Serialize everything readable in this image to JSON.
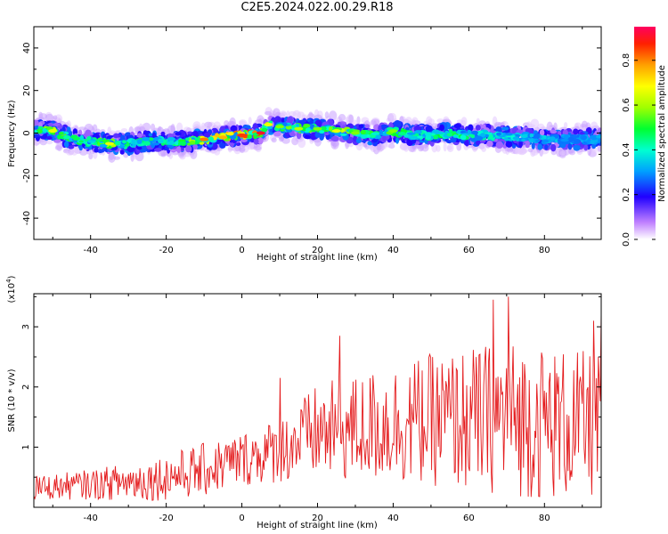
{
  "title": "C2E5.2024.022.00.29.R18",
  "chart_data": [
    {
      "type": "heatmap",
      "xlabel": "Height of straight line (km)",
      "ylabel": "Frequency (Hz)",
      "xlim": [
        -55,
        95
      ],
      "ylim": [
        -50,
        50
      ],
      "xticks": [
        -40,
        -20,
        0,
        20,
        40,
        60,
        80
      ],
      "yticks": [
        -40,
        -20,
        0,
        20,
        40
      ],
      "colorbar": {
        "label": "Normalized spectral amplitude",
        "range": [
          0,
          0.95
        ],
        "ticks": [
          0.0,
          0.2,
          0.4,
          0.6,
          0.8
        ]
      },
      "ridge": {
        "x": [
          -55,
          -50,
          -45,
          -40,
          -35,
          -30,
          -25,
          -20,
          -15,
          -10,
          -5,
          0,
          5,
          7,
          10,
          15,
          20,
          25,
          30,
          35,
          40,
          45,
          50,
          55,
          60,
          65,
          70,
          75,
          80,
          85,
          90,
          95
        ],
        "frequency": [
          2,
          1,
          -3,
          -4,
          -5,
          -5,
          -4,
          -4,
          -4,
          -3,
          -2,
          -1,
          0,
          4,
          3,
          2,
          2,
          1,
          0,
          -1,
          1,
          -1,
          -1,
          0,
          -1,
          -1,
          -2,
          -2,
          -3,
          -3,
          -3,
          -3
        ],
        "peak_amplitude": [
          0.5,
          0.7,
          0.55,
          0.5,
          0.7,
          0.5,
          0.55,
          0.5,
          0.55,
          0.85,
          0.8,
          0.9,
          0.95,
          0.7,
          0.6,
          0.65,
          0.6,
          0.7,
          0.6,
          0.55,
          0.6,
          0.5,
          0.5,
          0.55,
          0.5,
          0.45,
          0.45,
          0.4,
          0.4,
          0.35,
          0.35,
          0.35
        ]
      }
    },
    {
      "type": "line",
      "xlabel": "Height of straight line (km)",
      "ylabel": "SNR (10 * v/v)",
      "y_multiplier": "(x10",
      "y_multiplier_exp": "4",
      "y_multiplier_close": ")",
      "xlim": [
        -55,
        95
      ],
      "ylim": [
        0.0,
        3.55
      ],
      "xticks": [
        -40,
        -20,
        0,
        20,
        40,
        60,
        80
      ],
      "yticks": [
        1,
        2,
        3
      ],
      "series": [
        {
          "color": "#e41a1c",
          "x_start": -55,
          "x_end": 95,
          "points": 600,
          "trend_x": [
            -55,
            -40,
            -25,
            -10,
            0,
            10,
            20,
            30,
            40,
            50,
            60,
            70,
            80,
            95
          ],
          "trend_mean": [
            0.32,
            0.38,
            0.45,
            0.62,
            0.8,
            0.95,
            1.25,
            1.3,
            1.4,
            1.45,
            1.45,
            1.5,
            1.4,
            1.35
          ],
          "trend_spread": [
            0.2,
            0.25,
            0.35,
            0.45,
            0.45,
            0.55,
            0.8,
            0.9,
            1.0,
            1.1,
            1.2,
            1.3,
            1.3,
            1.2
          ],
          "peaks": [
            {
              "x": 10,
              "y": 2.15
            },
            {
              "x": 26,
              "y": 2.85
            },
            {
              "x": 66.5,
              "y": 3.45
            },
            {
              "x": 70.5,
              "y": 3.5
            },
            {
              "x": 93,
              "y": 3.1
            },
            {
              "x": 95,
              "y": 3.25
            }
          ]
        }
      ]
    }
  ]
}
